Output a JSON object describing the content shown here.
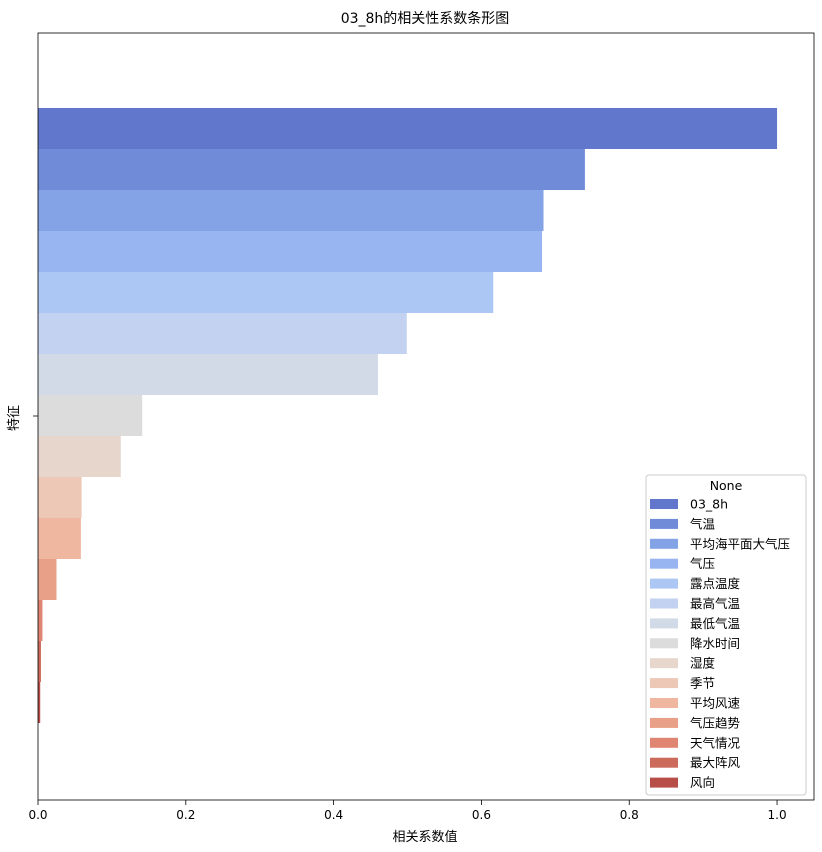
{
  "chart_data": {
    "type": "bar",
    "orientation": "horizontal",
    "title": "03_8h的相关性系数条形图",
    "xlabel": "相关系数值",
    "ylabel": "特征",
    "xlim": [
      0,
      1.05
    ],
    "xticks": [
      "0.0",
      "0.2",
      "0.4",
      "0.6",
      "0.8",
      "1.0"
    ],
    "legend_title": "None",
    "legend_position": "lower-right",
    "series": [
      {
        "name": "03_8h",
        "value": 1.0,
        "color": "#6177cb"
      },
      {
        "name": "气温",
        "value": 0.74,
        "color": "#708bd8"
      },
      {
        "name": "平均海平面大气压",
        "value": 0.684,
        "color": "#84a3e7"
      },
      {
        "name": "气压",
        "value": 0.682,
        "color": "#98b5f1"
      },
      {
        "name": "露点温度",
        "value": 0.616,
        "color": "#adc7f5"
      },
      {
        "name": "最高气温",
        "value": 0.499,
        "color": "#c2d2f0"
      },
      {
        "name": "最低气温",
        "value": 0.46,
        "color": "#d2dae7"
      },
      {
        "name": "降水时间",
        "value": 0.141,
        "color": "#dcdcdc"
      },
      {
        "name": "湿度",
        "value": 0.112,
        "color": "#e7d6cc"
      },
      {
        "name": "季节",
        "value": 0.059,
        "color": "#edc8b7"
      },
      {
        "name": "平均风速",
        "value": 0.058,
        "color": "#efb6a0"
      },
      {
        "name": "气压趋势",
        "value": 0.025,
        "color": "#e9a088"
      },
      {
        "name": "天气情况",
        "value": 0.006,
        "color": "#df8571"
      },
      {
        "name": "最大阵风",
        "value": 0.004,
        "color": "#cc6a5c"
      },
      {
        "name": "风向",
        "value": 0.003,
        "color": "#b84e48"
      }
    ]
  }
}
